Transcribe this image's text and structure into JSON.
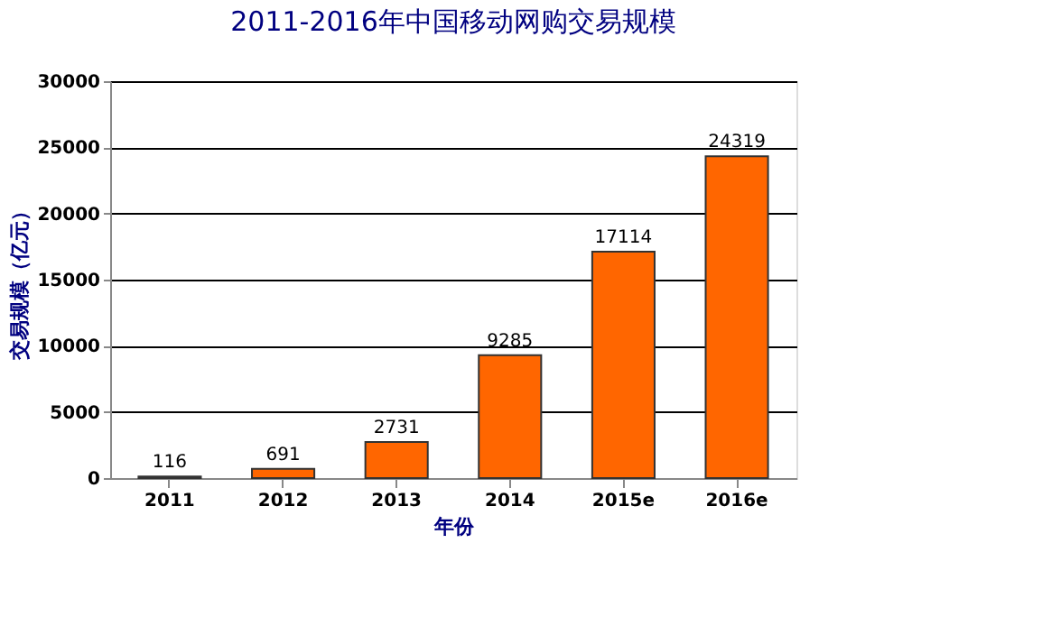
{
  "chart_data": {
    "type": "bar",
    "title": "2011-2016年中国移动网购交易规模",
    "categories": [
      "2011",
      "2012",
      "2013",
      "2014",
      "2015e",
      "2016e"
    ],
    "values": [
      116,
      691,
      2731,
      9285,
      17114,
      24319
    ],
    "color": "#ff6600",
    "xlabel": "年份",
    "ylabel": "交易规模（亿元）",
    "ylim": [
      0,
      30000
    ],
    "yticks": [
      0,
      5000,
      10000,
      15000,
      20000,
      25000,
      30000
    ],
    "grid": "y",
    "data_labels": true
  }
}
